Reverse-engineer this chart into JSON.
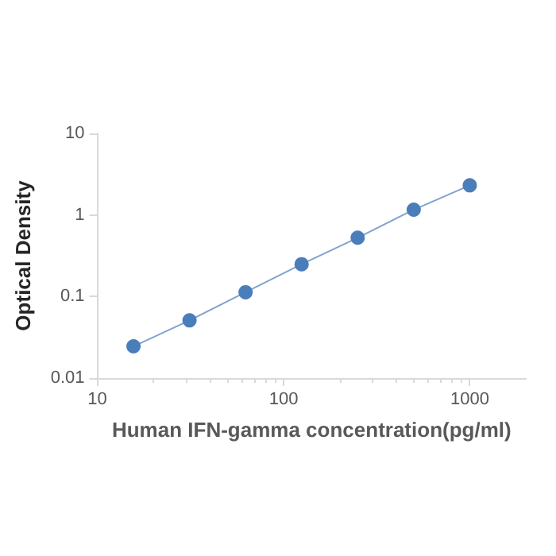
{
  "chart_data": {
    "type": "line",
    "xlabel": "Human IFN-gamma concentration(pg/ml)",
    "ylabel": "Optical Density",
    "x": [
      15.625,
      31.25,
      62.5,
      125,
      250,
      500,
      1000
    ],
    "series": [
      {
        "color": "#4a7ebb",
        "values": [
          0.0245,
          0.051,
          0.113,
          0.249,
          0.526,
          1.16,
          2.31
        ]
      }
    ],
    "log": "xy",
    "xlim": [
      10,
      2000
    ],
    "ylim": [
      0.01,
      10
    ],
    "xticks": [
      10,
      100,
      1000
    ],
    "yticks": [
      0.01,
      0.1,
      1,
      10
    ],
    "grid": false,
    "marker": "circle",
    "line_style": "solid"
  }
}
